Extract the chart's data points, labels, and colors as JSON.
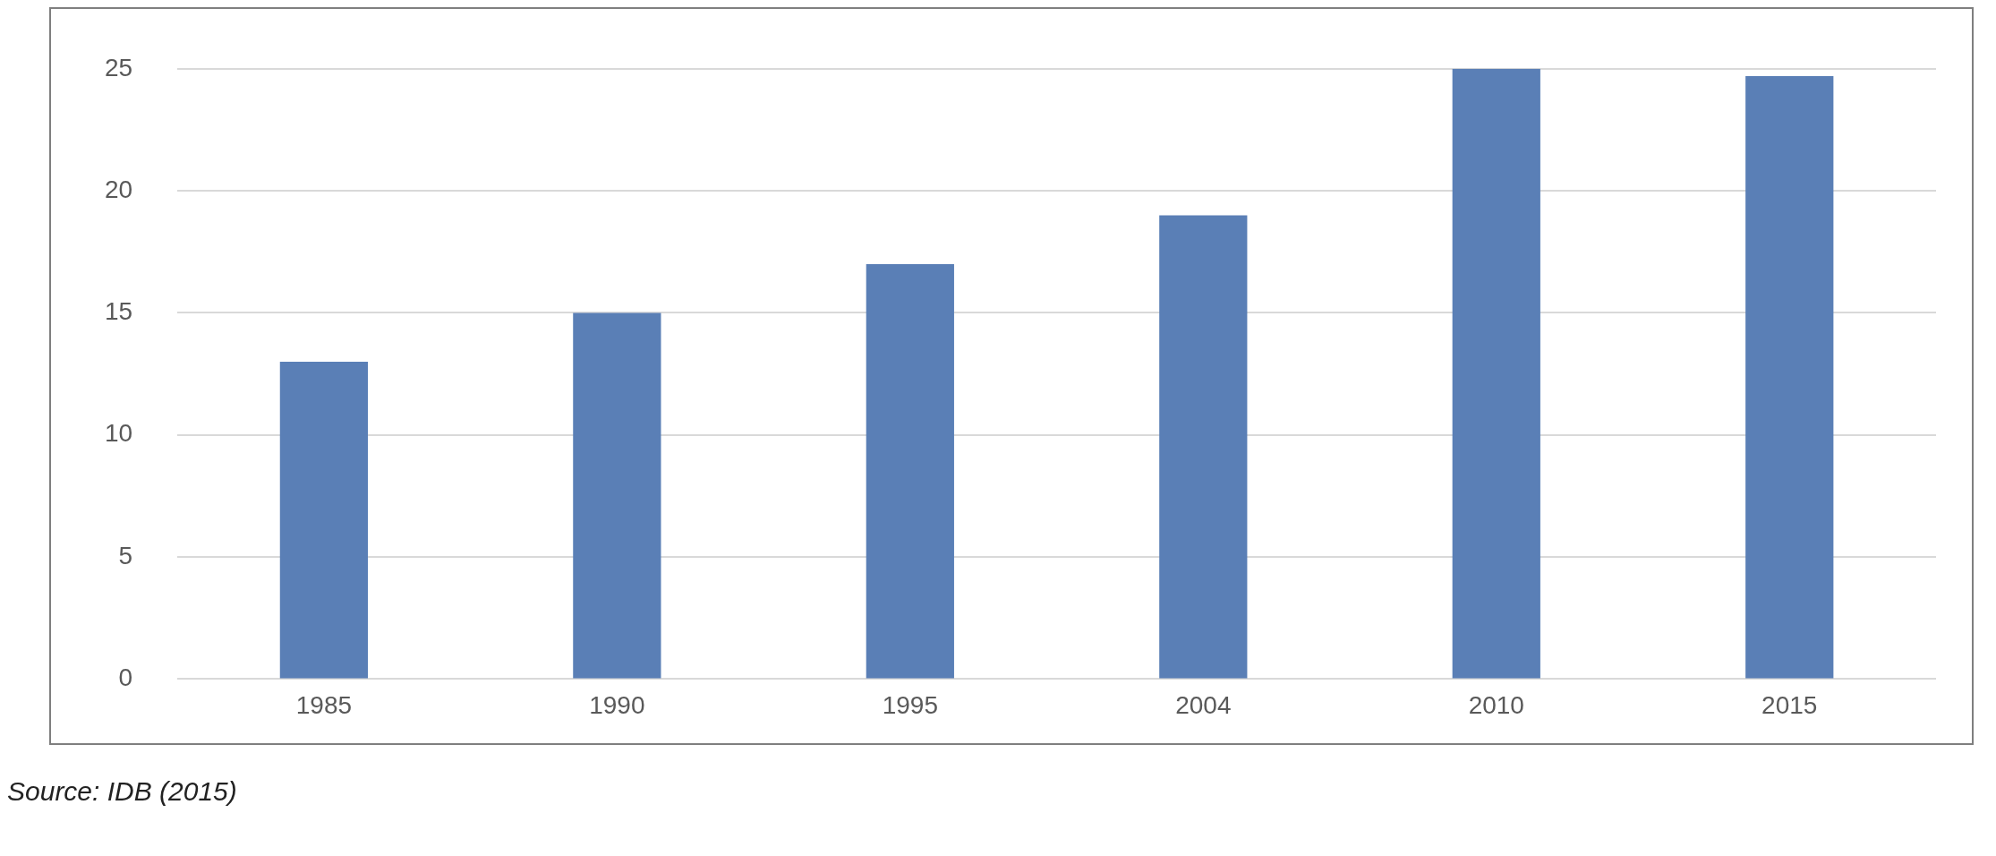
{
  "chart_data": {
    "type": "bar",
    "categories": [
      "1985",
      "1990",
      "1995",
      "2004",
      "2010",
      "2015"
    ],
    "values": [
      13,
      15,
      17,
      19,
      25,
      24.7
    ],
    "color": "#5a7fb6",
    "ylim": [
      0,
      25
    ],
    "yticks": [
      0,
      5,
      10,
      15,
      20,
      25
    ],
    "grid": "y",
    "annotations": [
      "Source: IDB (2015)"
    ]
  }
}
